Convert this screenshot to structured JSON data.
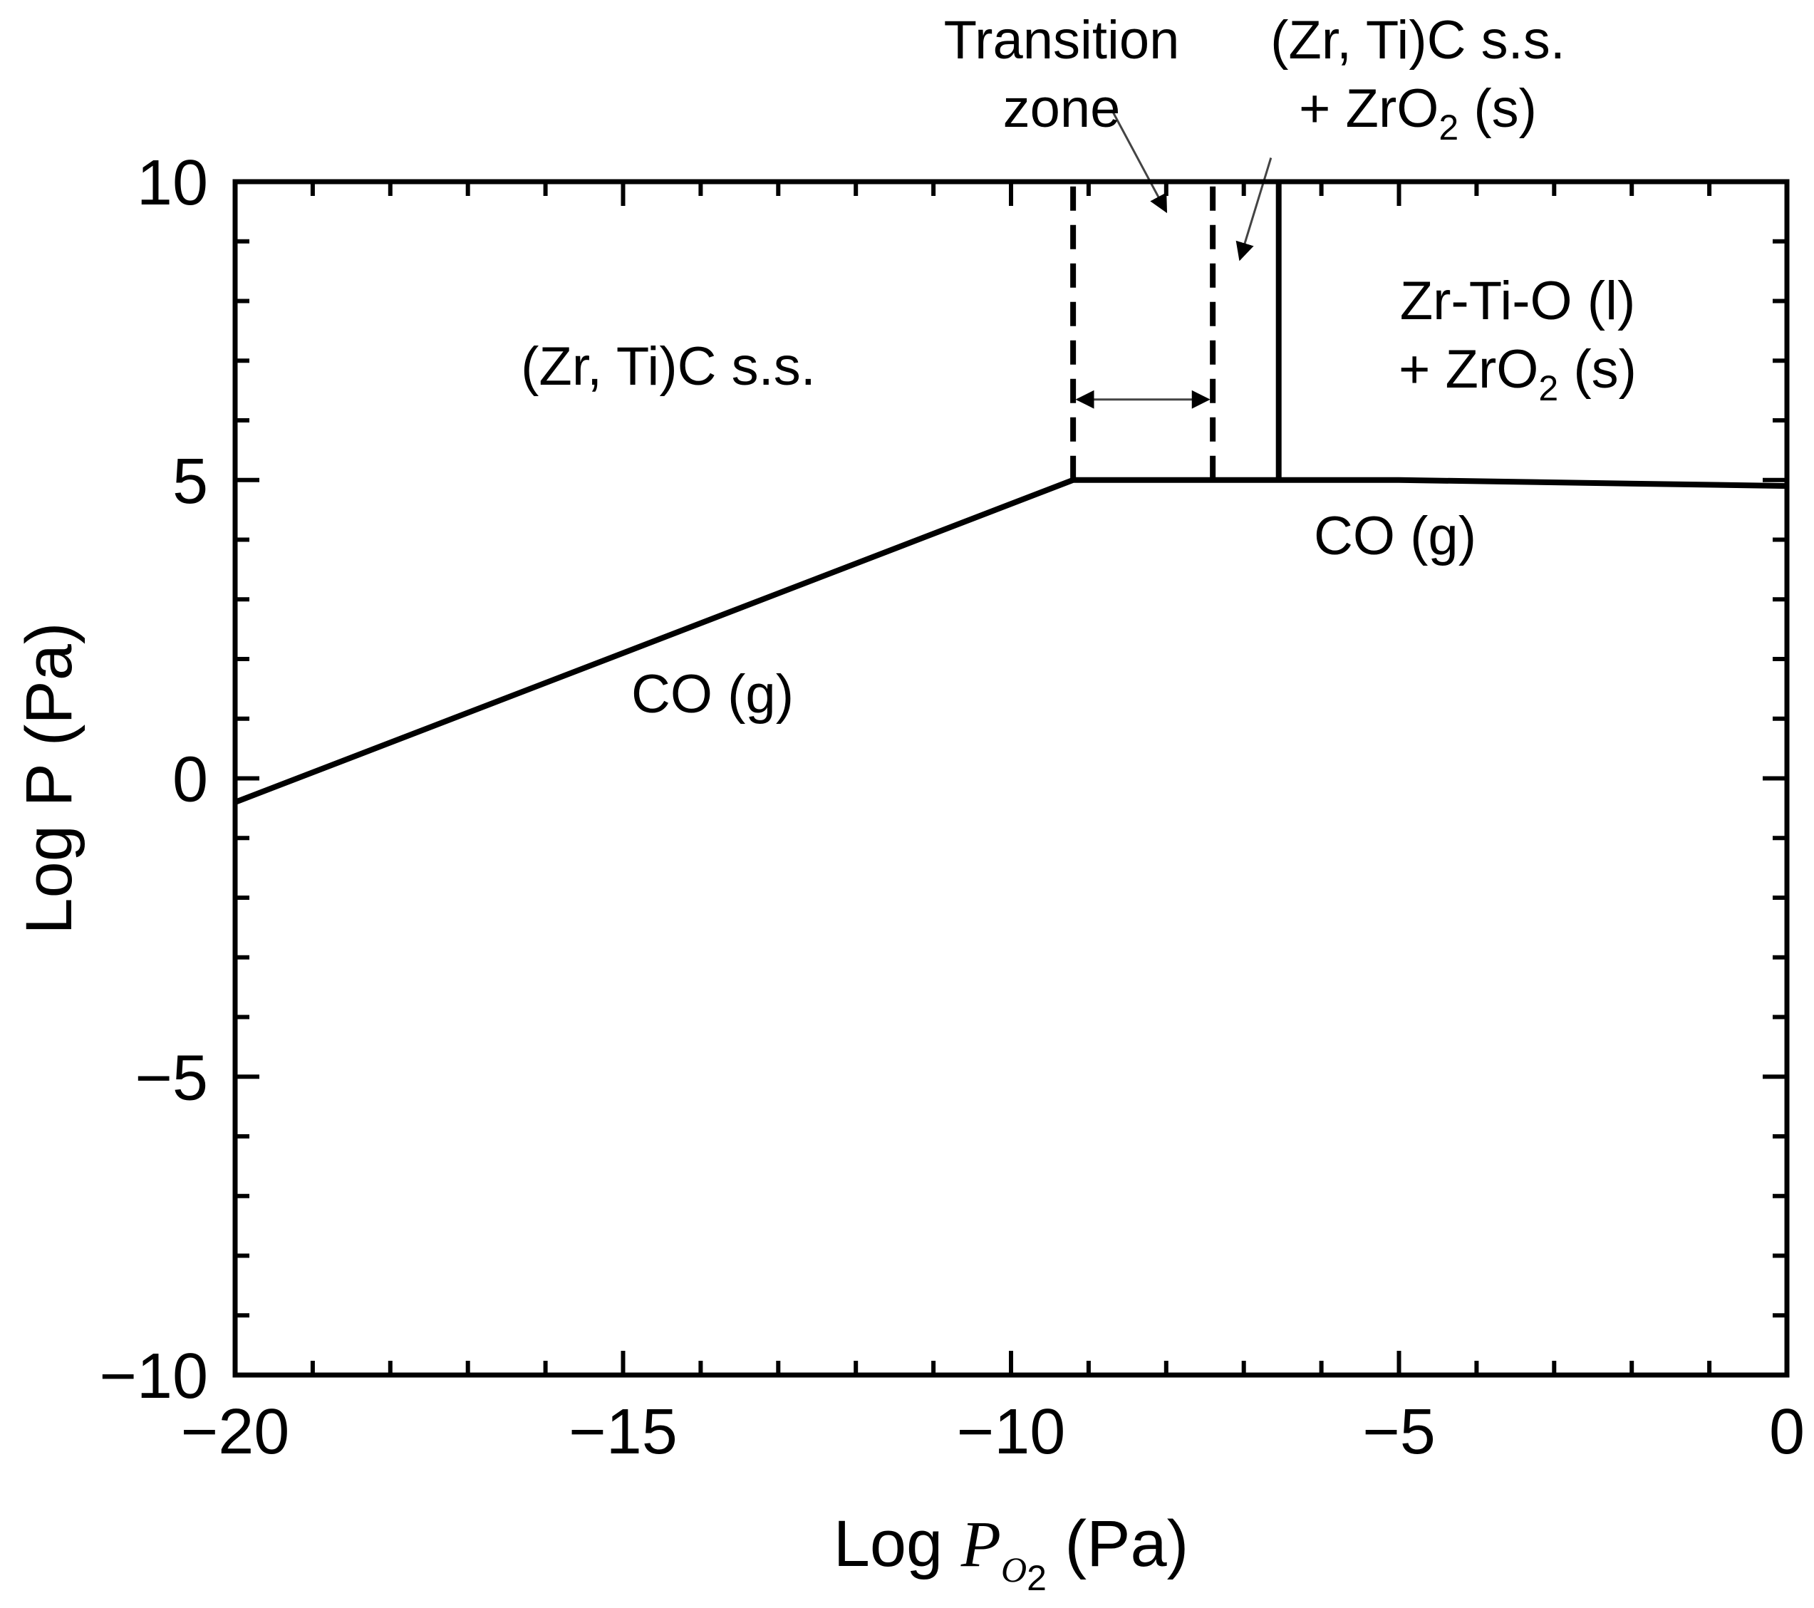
{
  "chart_data": {
    "type": "line",
    "title": "",
    "xlabel": {
      "prefix": "Log ",
      "symbol": "P",
      "sub1": "O",
      "sub2": "2",
      "suffix": " (Pa)"
    },
    "ylabel": "Log P (Pa)",
    "xlim": [
      -20,
      0
    ],
    "ylim": [
      -10,
      10
    ],
    "xticks": [
      -20,
      -15,
      -10,
      -5,
      0
    ],
    "xtick_labels": [
      "−20",
      "−15",
      "−10",
      "−5",
      "0"
    ],
    "yticks": [
      10,
      5,
      0,
      -5,
      -10
    ],
    "ytick_labels": [
      "10",
      "5",
      "0",
      "−5",
      "−10"
    ],
    "x_minor_step": 1,
    "y_minor_step": 1,
    "grid": false,
    "legend": "none",
    "boundaries": [
      {
        "style": "solid",
        "points": [
          [
            -20,
            -0.4
          ],
          [
            -9.2,
            5.0
          ],
          [
            -6.55,
            5.0
          ],
          [
            -5.0,
            5.0
          ],
          [
            0,
            4.9
          ]
        ]
      },
      {
        "style": "solid",
        "points": [
          [
            -6.55,
            5.0
          ],
          [
            -6.55,
            10.0
          ]
        ]
      },
      {
        "style": "dashed",
        "points": [
          [
            -9.2,
            5.0
          ],
          [
            -9.2,
            10.0
          ]
        ]
      },
      {
        "style": "dashed",
        "points": [
          [
            -7.4,
            5.0
          ],
          [
            -7.4,
            10.0
          ]
        ]
      }
    ],
    "annotations": {
      "transition": {
        "line1": "Transition",
        "line2": "zone"
      },
      "carbide_oxide": {
        "line1": "(Zr, Ti)C s.s.",
        "line2_prefix": "+ ZrO",
        "line2_sub": "2",
        "line2_suffix": " (s)"
      },
      "carbide": "(Zr, Ti)C s.s.",
      "liquid": {
        "line1": "Zr-Ti-O (l)",
        "line2_prefix": "+ ZrO",
        "line2_sub": "2",
        "line2_suffix": " (s)"
      },
      "co_right": "CO (g)",
      "co_left": "CO (g)"
    },
    "arrow_pointers": [
      {
        "from": [
          -8.7,
          11.2
        ],
        "to": [
          -8.0,
          9.5
        ]
      },
      {
        "from": [
          -6.65,
          10.4
        ],
        "to": [
          -7.05,
          8.7
        ]
      }
    ],
    "double_arrow": {
      "from": [
        -9.2,
        6.35
      ],
      "to": [
        -7.4,
        6.35
      ]
    }
  }
}
